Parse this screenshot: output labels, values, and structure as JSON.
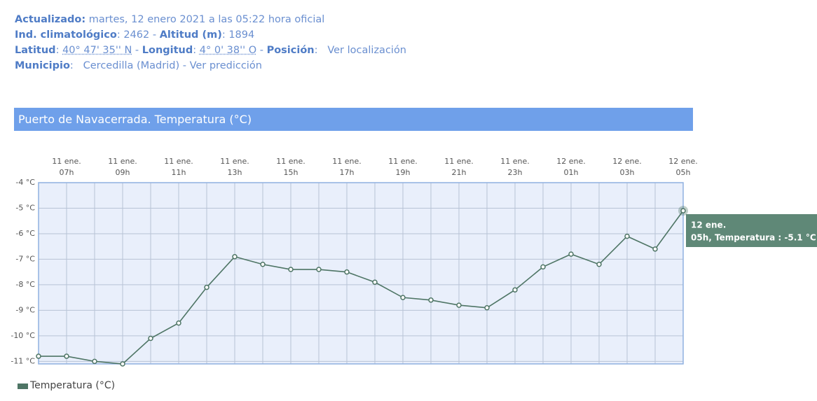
{
  "station": {
    "rows": [
      [
        {
          "label": "Actualizado:",
          "value": " martes, 12 enero 2021 a las 05:22 hora oficial"
        }
      ],
      [
        {
          "label": "Ind. climatológico",
          "value": ": 2462 - "
        },
        {
          "label": "Altitud (m)",
          "value": ": 1894"
        }
      ],
      [
        {
          "label": "Latitud",
          "sep": ": ",
          "value": "40° 47' 35'' N",
          "suffix": " - "
        },
        {
          "label": "Longitud",
          "sep": ": ",
          "value": "4° 0' 38'' O",
          "suffix": " - "
        },
        {
          "label": "Posición",
          "sep": ":   ",
          "value": "Ver localización"
        }
      ],
      [
        {
          "label": "Municipio",
          "sep": ":   ",
          "value": "Cercedilla (Madrid) - Ver predicción"
        }
      ]
    ]
  },
  "chart_data": {
    "type": "line",
    "title": "Puerto de Navacerrada. Temperatura (°C)",
    "categories": [
      null,
      "07h",
      null,
      "09h",
      null,
      "11h",
      null,
      "13h",
      null,
      "15h",
      null,
      "17h",
      null,
      "19h",
      null,
      "21h",
      null,
      "23h",
      null,
      "01h",
      null,
      "03h",
      null,
      "05h"
    ],
    "category_dates": [
      null,
      "11 ene.",
      null,
      "11 ene.",
      null,
      "11 ene.",
      null,
      "11 ene.",
      null,
      "11 ene.",
      null,
      "11 ene.",
      null,
      "11 ene.",
      null,
      "11 ene.",
      null,
      "11 ene.",
      null,
      "12 ene.",
      null,
      "12 ene.",
      null,
      "12 ene."
    ],
    "series": [
      {
        "name": "Temperatura (°C)",
        "color": "#4e7565",
        "values": [
          -10.8,
          -10.8,
          -11.0,
          -11.1,
          -10.1,
          -9.5,
          -8.1,
          -6.9,
          -7.2,
          -7.4,
          -7.4,
          -7.5,
          -7.9,
          -8.5,
          -8.6,
          -8.8,
          -8.9,
          -8.2,
          -7.3,
          -6.8,
          -7.2,
          -6.1,
          -6.6,
          -5.1
        ]
      }
    ],
    "ylim": [
      -11.1,
      -4
    ],
    "yticks": [
      {
        "value": -4,
        "label": "-4 °C"
      },
      {
        "value": -5,
        "label": "-5 °C"
      },
      {
        "value": -6,
        "label": "-6 °C"
      },
      {
        "value": -7,
        "label": "-7 °C"
      },
      {
        "value": -8,
        "label": "-8 °C"
      },
      {
        "value": -9,
        "label": "-9 °C"
      },
      {
        "value": -10,
        "label": "-10 °C"
      },
      {
        "value": -11,
        "label": "-11 °C"
      }
    ],
    "grid": true,
    "tooltip": {
      "title": "12 ene.",
      "text": "05h, Temperatura : -5.1 °C"
    }
  }
}
